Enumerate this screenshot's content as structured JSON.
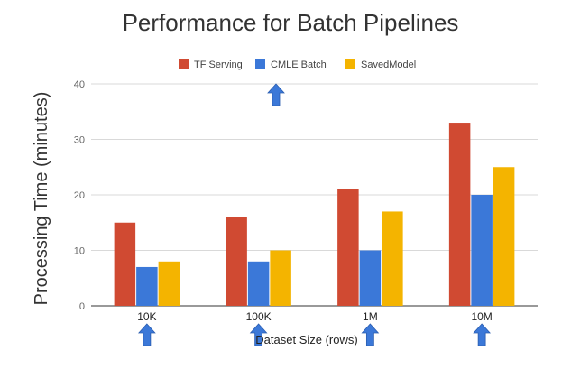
{
  "chart_data": {
    "type": "bar",
    "title": "Performance for Batch Pipelines",
    "xlabel": "Dataset Size (rows)",
    "ylabel": "Processing Time (minutes)",
    "categories": [
      "10K",
      "100K",
      "1M",
      "10M"
    ],
    "series": [
      {
        "name": "TF Serving",
        "color": "#d04a32",
        "values": [
          15,
          16,
          21,
          33
        ]
      },
      {
        "name": "CMLE Batch",
        "color": "#3b78d8",
        "values": [
          7,
          8,
          10,
          20
        ]
      },
      {
        "name": "SavedModel",
        "color": "#f4b400",
        "values": [
          8,
          10,
          17,
          25
        ]
      }
    ],
    "ylim": [
      0,
      40
    ],
    "yticks": [
      0,
      10,
      20,
      30,
      40
    ],
    "grid": true,
    "legend_position": "top",
    "annotations": {
      "arrow_color": "#3b78d8",
      "arrow_icon": "up-arrow-icon",
      "arrow_positions": [
        "legend-cmle-batch",
        "10K",
        "100K",
        "1M",
        "10M"
      ]
    }
  }
}
